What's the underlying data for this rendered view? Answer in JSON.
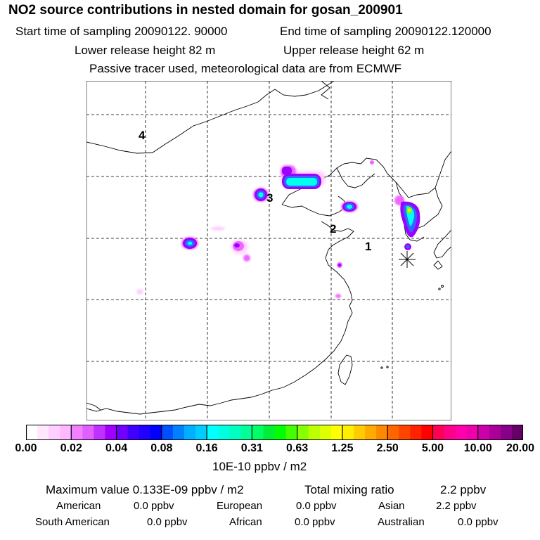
{
  "header": {
    "title": "NO2 source contributions in nested domain for gosan_200901",
    "start_label": "Start time of sampling 20090122. 90000",
    "end_label": "End time of sampling 20090122.120000",
    "lower_label": "Lower release height   82 m",
    "upper_label": "Upper release height   62 m",
    "note": "Passive tracer used, meteorological data are from ECMWF"
  },
  "map": {
    "region_labels": [
      "1",
      "2",
      "3",
      "4"
    ],
    "receptor_icon": "asterisk-icon",
    "plume_colors": [
      "#ffd0ff",
      "#ee66ff",
      "#9900ff",
      "#3366ff",
      "#00ffee",
      "#66ff33",
      "#ffee00"
    ]
  },
  "colorbar": {
    "ticks": [
      "0.00",
      "0.02",
      "0.04",
      "0.08",
      "0.16",
      "0.31",
      "0.63",
      "1.25",
      "2.50",
      "5.00",
      "10.00",
      "20.00"
    ],
    "units": "10E-10 ppbv / m2",
    "colors": [
      "#ffffff",
      "#ffe8ff",
      "#ffd0ff",
      "#ffb8ff",
      "#f080ff",
      "#e060ff",
      "#c030ff",
      "#a000ff",
      "#7000ff",
      "#4000ff",
      "#2000ff",
      "#0000ff",
      "#0050ff",
      "#0080ff",
      "#00b0ff",
      "#00ccff",
      "#00ffff",
      "#00ffe0",
      "#00ffc0",
      "#00ff99",
      "#00ff66",
      "#00ee33",
      "#00ff00",
      "#44ff00",
      "#88ff00",
      "#bbff00",
      "#ddff00",
      "#ffff00",
      "#ffee00",
      "#ffcc00",
      "#ffaa00",
      "#ff8800",
      "#ff6600",
      "#ff4400",
      "#ff2200",
      "#ff0000",
      "#ff0055",
      "#ff0088",
      "#ff00aa",
      "#ee00aa",
      "#cc00aa",
      "#aa0099",
      "#880088",
      "#660066"
    ]
  },
  "stats": {
    "max_label": "Maximum value  0.133E-09 ppbv / m2",
    "total_label": "Total mixing ratio",
    "total_value": "2.2 ppbv",
    "american_label": "American",
    "american_value": "0.0 ppbv",
    "european_label": "European",
    "european_value": "0.0 ppbv",
    "asian_label": "Asian",
    "asian_value": "2.2 ppbv",
    "south_american_label": "South American",
    "south_american_value": "0.0 ppbv",
    "african_label": "African",
    "african_value": "0.0 ppbv",
    "australian_label": "Australian",
    "australian_value": "0.0 ppbv"
  }
}
